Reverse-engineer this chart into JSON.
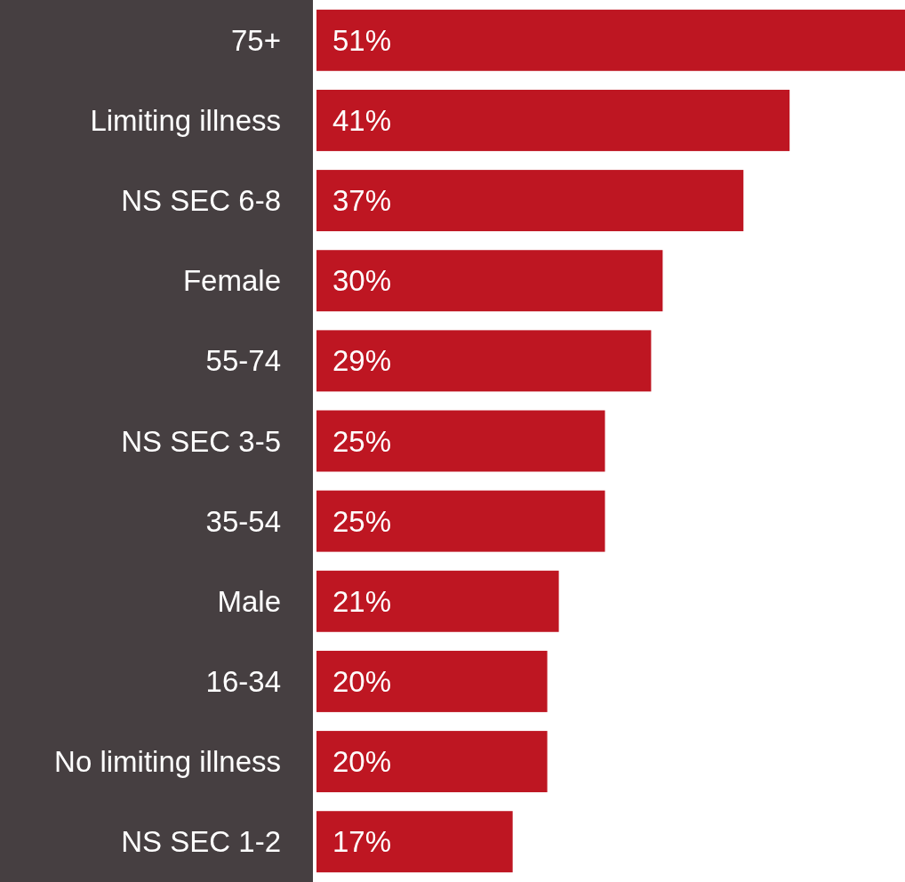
{
  "chart_data": {
    "type": "bar",
    "orientation": "horizontal",
    "categories": [
      "75+",
      "Limiting illness",
      "NS SEC 6-8",
      "Female",
      "55-74",
      "NS SEC 3-5",
      "35-54",
      "Male",
      "16-34",
      "No limiting illness",
      "NS SEC 1-2"
    ],
    "values": [
      51,
      41,
      37,
      30,
      29,
      25,
      25,
      21,
      20,
      20,
      17
    ],
    "value_labels": [
      "51%",
      "41%",
      "37%",
      "30%",
      "29%",
      "25%",
      "25%",
      "21%",
      "20%",
      "20%",
      "17%"
    ],
    "color": "#be1622"
  }
}
